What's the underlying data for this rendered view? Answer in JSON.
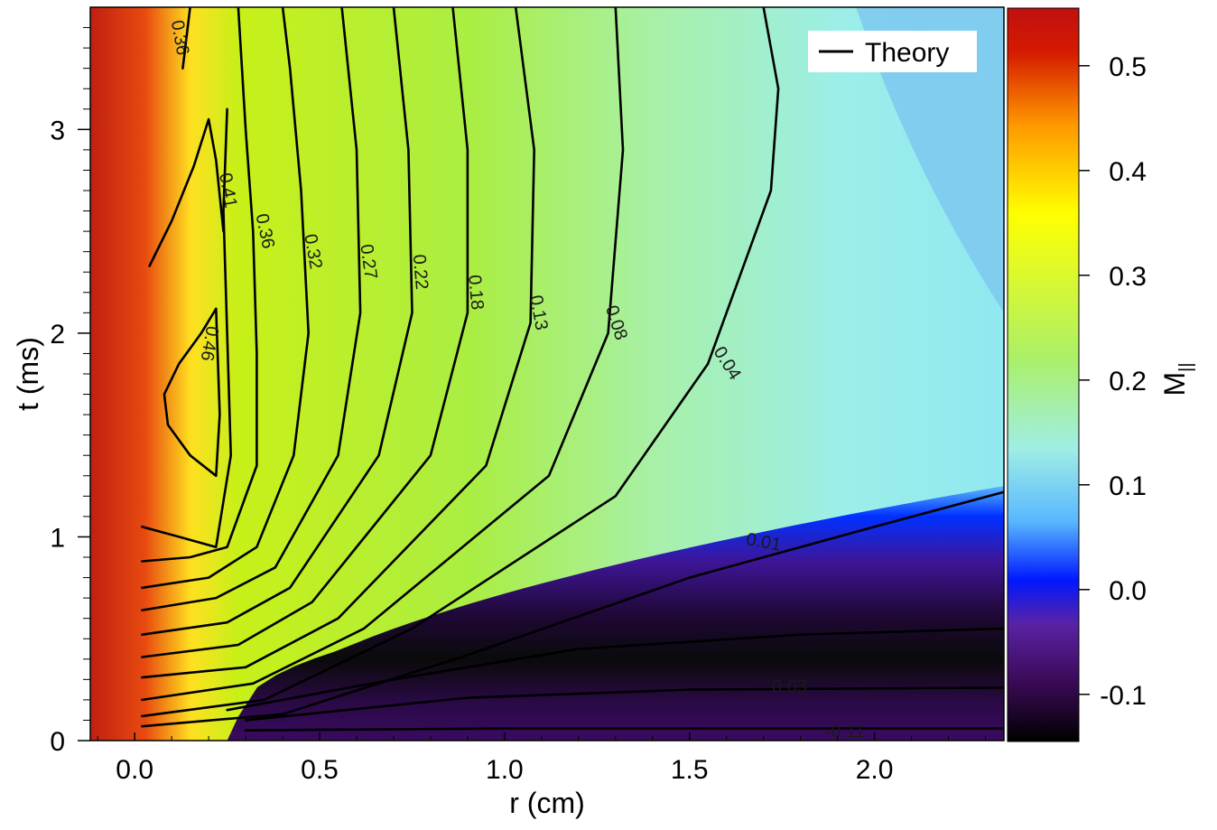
{
  "chart_data": {
    "type": "heatmap",
    "xlabel": "r (cm)",
    "ylabel": "t (ms)",
    "colorbar_label": "M",
    "colorbar_label_subscript": "||",
    "xlim": [
      -0.12,
      2.35
    ],
    "ylim": [
      0,
      3.6
    ],
    "clim": [
      -0.145,
      0.555
    ],
    "x_ticks": [
      0.0,
      0.5,
      1.0,
      1.5,
      2.0
    ],
    "x_tick_labels": [
      "0.0",
      "0.5",
      "1.0",
      "1.5",
      "2.0"
    ],
    "y_ticks": [
      0,
      1,
      2,
      3
    ],
    "y_tick_labels": [
      "0",
      "1",
      "2",
      "3"
    ],
    "colorbar_ticks": [
      0.5,
      0.4,
      0.3,
      0.2,
      0.1,
      0.0,
      -0.1
    ],
    "colorbar_tick_labels": [
      "0.5",
      "0.4",
      "0.3",
      "0.2",
      "0.1",
      "0.0",
      "-0.1"
    ],
    "colormap": [
      "#000000",
      "#3a0a55",
      "#5a22a5",
      "#0018ff",
      "#58b8ff",
      "#a0eee4",
      "#aaf06a",
      "#ffff00",
      "#ff9900",
      "#d51a00",
      "#c01010"
    ],
    "legend": {
      "entries": [
        "Theory"
      ],
      "placement": "top-right"
    },
    "contour_labels": [
      {
        "text": "0.36",
        "r": 0.12,
        "t": 3.45,
        "angle": 80
      },
      {
        "text": "0.41",
        "r": 0.25,
        "t": 2.7,
        "angle": 80
      },
      {
        "text": "0.46",
        "r": 0.2,
        "t": 1.95,
        "angle": 100
      },
      {
        "text": "0.36",
        "r": 0.35,
        "t": 2.5,
        "angle": 78
      },
      {
        "text": "0.32",
        "r": 0.48,
        "t": 2.4,
        "angle": 80
      },
      {
        "text": "0.27",
        "r": 0.63,
        "t": 2.35,
        "angle": 82
      },
      {
        "text": "0.22",
        "r": 0.77,
        "t": 2.3,
        "angle": 85
      },
      {
        "text": "0.18",
        "r": 0.92,
        "t": 2.2,
        "angle": 85
      },
      {
        "text": "0.13",
        "r": 1.09,
        "t": 2.1,
        "angle": 80
      },
      {
        "text": "0.08",
        "r": 1.3,
        "t": 2.05,
        "angle": 72
      },
      {
        "text": "0.04",
        "r": 1.6,
        "t": 1.85,
        "angle": 58
      },
      {
        "text": "0.01",
        "r": 1.7,
        "t": 0.97,
        "angle": 10
      },
      {
        "text": "0.03",
        "r": 1.77,
        "t": 0.26,
        "angle": 0
      },
      {
        "text": "-0.11",
        "r": 1.92,
        "t": 0.04,
        "angle": 0
      }
    ]
  }
}
